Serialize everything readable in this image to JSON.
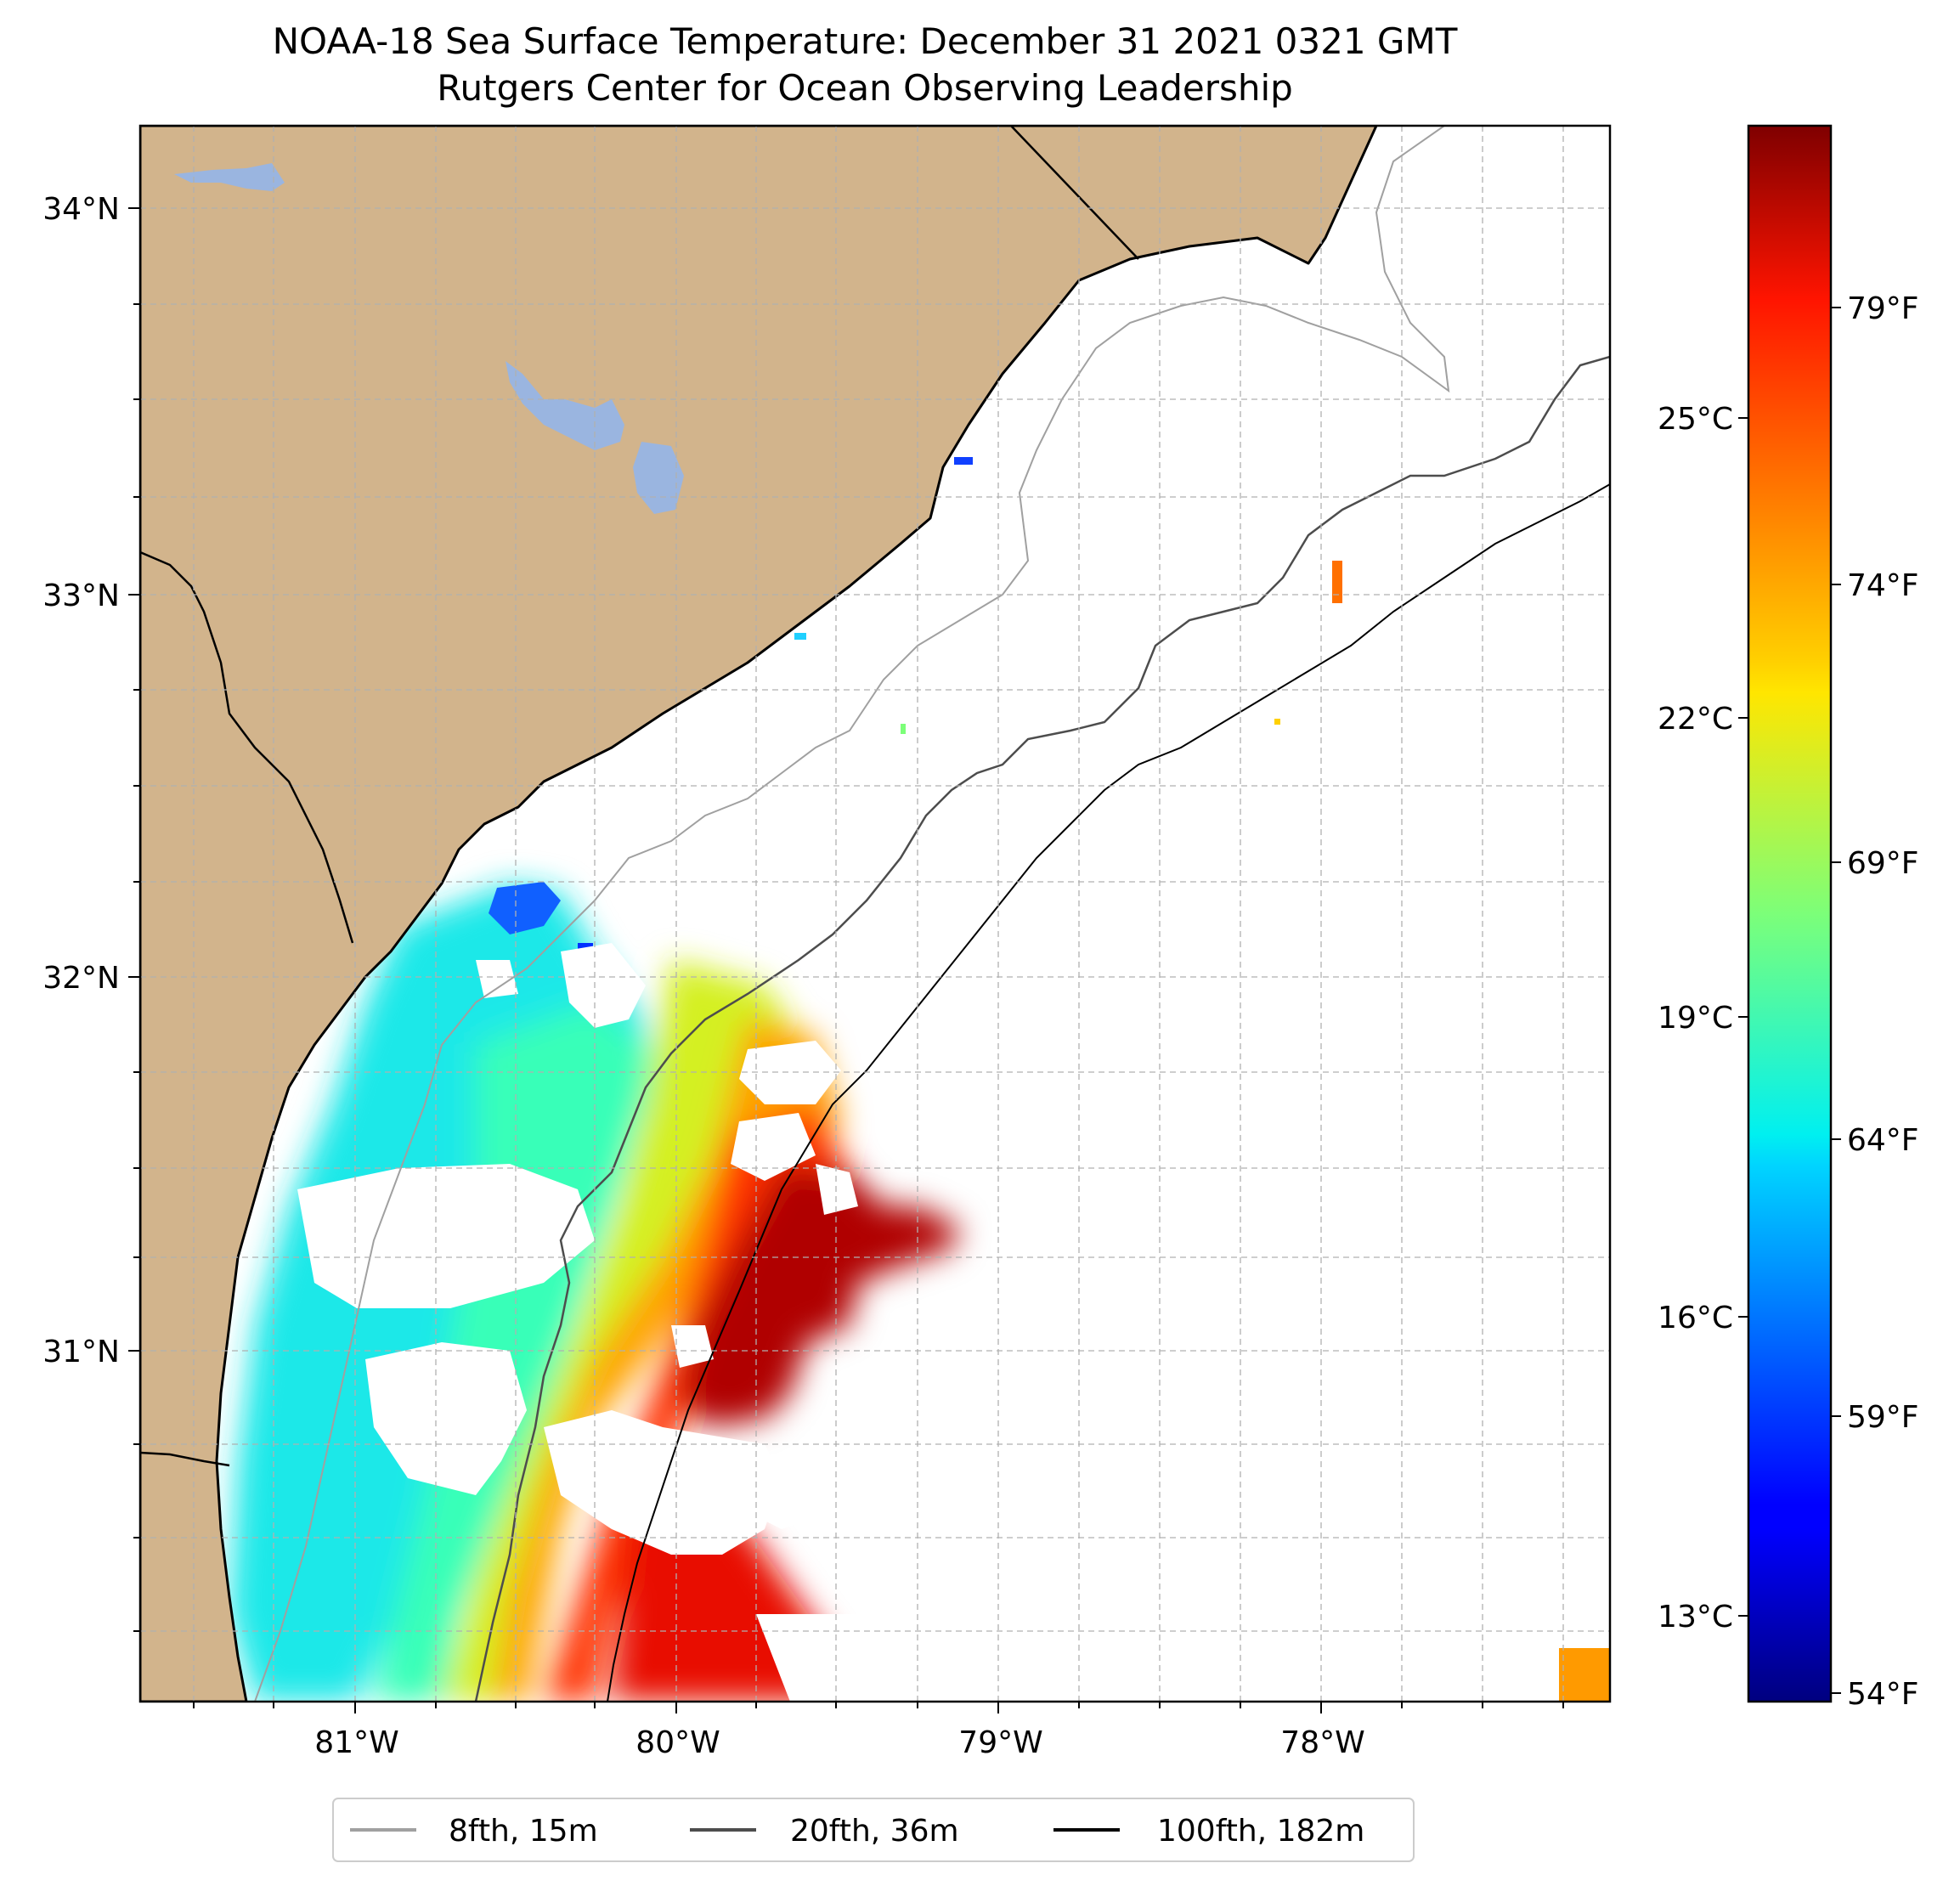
{
  "title": {
    "line1": "NOAA-18 Sea Surface Temperature: December 31 2021 0321 GMT",
    "line2": "Rutgers Center for Ocean Observing Leadership"
  },
  "colors": {
    "land": "#d2b48c",
    "lake": "#9ab5e0",
    "grid": "#b0b0b0",
    "coast": "#000000",
    "iso_8fth": "#a0a0a0",
    "iso_20fth": "#4d4d4d",
    "iso_100fth": "#000000"
  },
  "map": {
    "lon_ticks": [
      "81°W",
      "80°W",
      "79°W",
      "78°W"
    ],
    "lat_ticks": [
      "34°N",
      "33°N",
      "32°N",
      "31°N"
    ]
  },
  "colorbar": {
    "celsius_ticks": [
      "25°C",
      "22°C",
      "19°C",
      "16°C",
      "13°C"
    ],
    "fahrenheit_ticks": [
      "79°F",
      "74°F",
      "69°F",
      "64°F",
      "59°F",
      "54°F"
    ]
  },
  "legend": {
    "items": [
      {
        "label": "8fth, 15m",
        "color": "#a0a0a0"
      },
      {
        "label": "20fth, 36m",
        "color": "#4d4d4d"
      },
      {
        "label": "100fth, 182m",
        "color": "#000000"
      }
    ]
  }
}
